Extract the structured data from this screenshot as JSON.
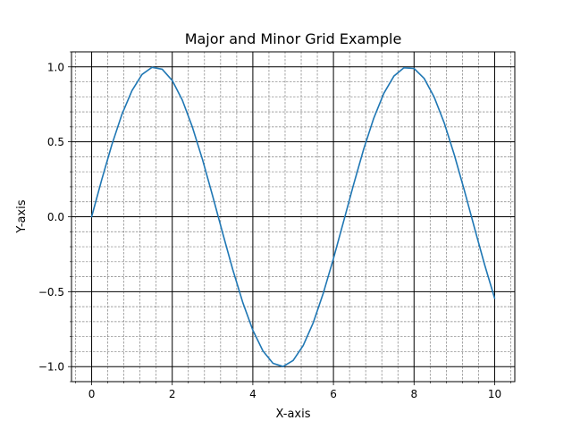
{
  "chart_data": {
    "type": "line",
    "title": "Major and Minor Grid Example",
    "xlabel": "X-axis",
    "ylabel": "Y-axis",
    "xlim": [
      -0.5,
      10.5
    ],
    "ylim": [
      -1.1,
      1.1
    ],
    "grid": {
      "major": true,
      "minor": true,
      "major_color": "#000000",
      "minor_color": "#808080",
      "minor_style": "dashed"
    },
    "x_ticks": [
      0,
      2,
      4,
      6,
      8,
      10
    ],
    "x_tick_labels": [
      "0",
      "2",
      "4",
      "6",
      "8",
      "10"
    ],
    "y_ticks": [
      -1.0,
      -0.5,
      0.0,
      0.5,
      1.0
    ],
    "y_tick_labels": [
      "−1.0",
      "−0.5",
      "0.0",
      "0.5",
      "1.0"
    ],
    "x_minor_step": 0.4,
    "y_minor_step": 0.1,
    "series": [
      {
        "color": "#1f77b4",
        "x": [
          0,
          0.25,
          0.5,
          0.75,
          1.0,
          1.25,
          1.5,
          1.75,
          2.0,
          2.25,
          2.5,
          2.75,
          3.0,
          3.25,
          3.5,
          3.75,
          4.0,
          4.25,
          4.5,
          4.75,
          5.0,
          5.25,
          5.5,
          5.75,
          6.0,
          6.25,
          6.5,
          6.75,
          7.0,
          7.25,
          7.5,
          7.75,
          8.0,
          8.25,
          8.5,
          8.75,
          9.0,
          9.25,
          9.5,
          9.75,
          10.0
        ],
        "y": [
          0.0,
          0.247,
          0.479,
          0.682,
          0.841,
          0.949,
          0.997,
          0.984,
          0.909,
          0.778,
          0.598,
          0.382,
          0.141,
          -0.108,
          -0.351,
          -0.572,
          -0.757,
          -0.895,
          -0.978,
          -0.999,
          -0.959,
          -0.859,
          -0.706,
          -0.508,
          -0.279,
          -0.033,
          0.215,
          0.451,
          0.657,
          0.823,
          0.938,
          0.994,
          0.989,
          0.923,
          0.798,
          0.625,
          0.412,
          0.174,
          -0.075,
          -0.319,
          -0.544
        ]
      }
    ]
  }
}
